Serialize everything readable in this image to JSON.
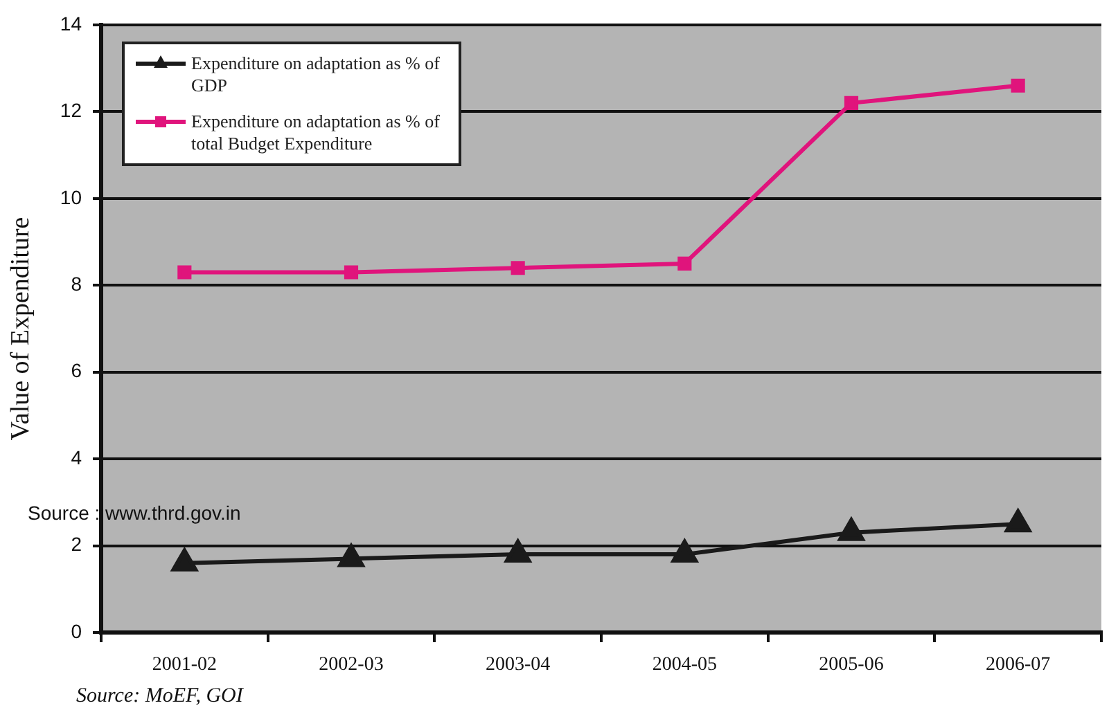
{
  "chart_data": {
    "type": "line",
    "ylabel": "Value of Expenditure",
    "categories": [
      "2001-02",
      "2002-03",
      "2003-04",
      "2004-05",
      "2005-06",
      "2006-07"
    ],
    "series": [
      {
        "name": "Expenditure on adaptation as % of GDP",
        "color": "#1a1a1a",
        "marker": "triangle",
        "values": [
          1.6,
          1.7,
          1.8,
          1.8,
          2.3,
          2.5
        ]
      },
      {
        "name": "Expenditure on adaptation as % of total Budget Expenditure",
        "color": "#e0147c",
        "marker": "square",
        "values": [
          8.3,
          8.3,
          8.4,
          8.5,
          12.2,
          12.6
        ]
      }
    ],
    "ylim": [
      0,
      14
    ],
    "yticks": [
      0,
      2,
      4,
      6,
      8,
      10,
      12,
      14
    ],
    "grid": "y",
    "legend": "top left",
    "annotations": [
      "Source : www.thrd.gov.in",
      "Source: MoEF, GOI"
    ]
  }
}
